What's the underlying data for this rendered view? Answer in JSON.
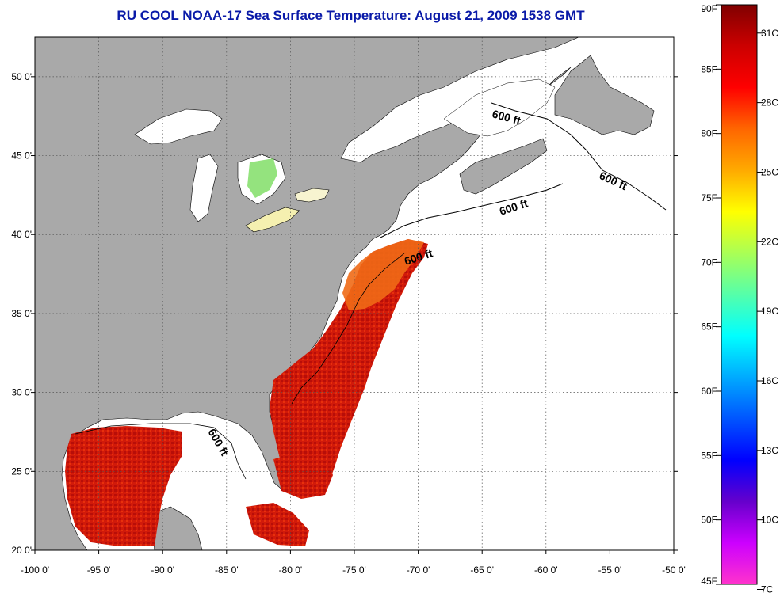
{
  "title": "RU COOL  NOAA-17  Sea Surface Temperature:  August 21, 2009 1538 GMT",
  "map": {
    "lon_range": [
      -100,
      -50
    ],
    "lat_range": [
      20,
      52.5
    ],
    "x_ticks": [
      "-100 0'",
      "-95 0'",
      "-90 0'",
      "-85 0'",
      "-80 0'",
      "-75 0'",
      "-70 0'",
      "-65 0'",
      "-60 0'",
      "-55 0'",
      "-50 0'"
    ],
    "x_tick_values": [
      -100,
      -95,
      -90,
      -85,
      -80,
      -75,
      -70,
      -65,
      -60,
      -55,
      -50
    ],
    "y_ticks": [
      "20 0'",
      "25 0'",
      "30 0'",
      "35 0'",
      "40 0'",
      "45 0'",
      "50 0'"
    ],
    "y_tick_values": [
      20,
      25,
      30,
      35,
      40,
      45,
      50
    ],
    "contour_label": "600 ft",
    "colors": {
      "land": "#a9a9a9",
      "ocean_nodata": "#ffffff",
      "border": "#000000"
    }
  },
  "colorbar": {
    "f_labels": [
      "90F",
      "85F",
      "80F",
      "75F",
      "70F",
      "65F",
      "60F",
      "55F",
      "50F",
      "45F"
    ],
    "f_values": [
      90,
      85,
      80,
      75,
      70,
      65,
      60,
      55,
      50,
      45
    ],
    "c_labels": [
      "31C",
      "28C",
      "25C",
      "22C",
      "19C",
      "16C",
      "13C",
      "10C",
      "7C"
    ],
    "c_values": [
      31,
      28,
      25,
      22,
      19,
      16,
      13,
      10,
      7
    ],
    "stops": [
      "#800000",
      "#cc0000",
      "#ff0000",
      "#ff6600",
      "#ffaa00",
      "#ffff00",
      "#aaff55",
      "#55ffaa",
      "#00ffff",
      "#00aaff",
      "#0055ff",
      "#0000ff",
      "#6600cc",
      "#cc00ff",
      "#ff33cc"
    ]
  }
}
